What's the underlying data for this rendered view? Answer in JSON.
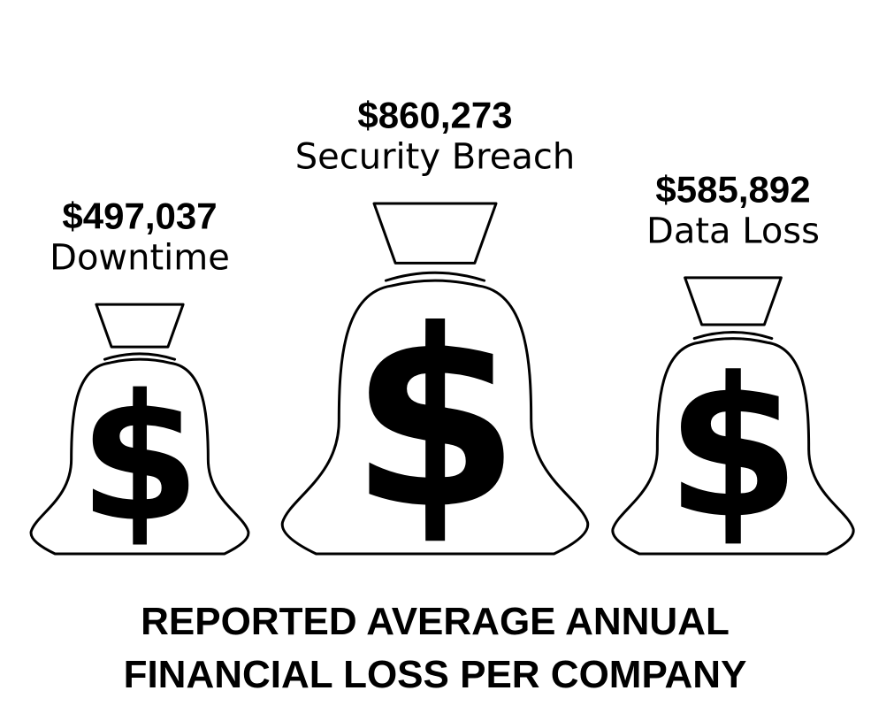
{
  "chart_data": {
    "type": "pictograph",
    "title": "REPORTED AVERAGE ANNUAL FINANCIAL LOSS PER COMPANY",
    "title_lines": [
      "REPORTED AVERAGE ANNUAL",
      "FINANCIAL LOSS PER COMPANY"
    ],
    "categories": [
      "Downtime",
      "Security Breach",
      "Data Loss"
    ],
    "values": [
      497037,
      860273,
      585892
    ],
    "value_labels": [
      "$497,037",
      "$860,273",
      "$585,892"
    ],
    "icon_glyph": "$",
    "icon": "money-bag-icon",
    "colors": {
      "ink": "#000000",
      "fill": "#ffffff"
    }
  }
}
